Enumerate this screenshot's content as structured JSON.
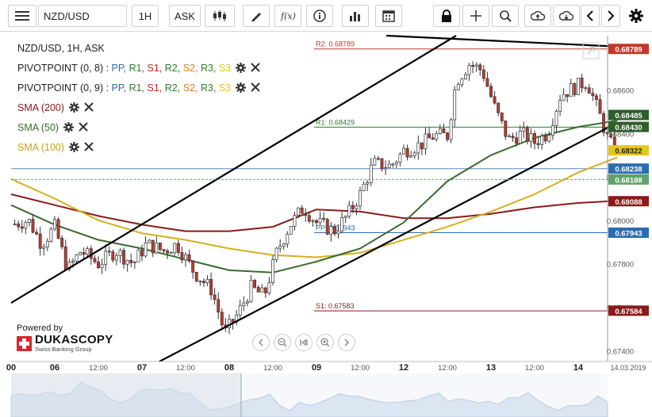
{
  "toolbar": {
    "symbol": "NZD/USD",
    "timeframe": "1H",
    "price_side": "ASK",
    "buttons": [
      "menu-icon",
      "candlestick-icon",
      "pencil-icon",
      "function-icon",
      "info-icon",
      "bar-chart-icon",
      "calendar-icon",
      "lock-icon",
      "crosshair-icon",
      "zoom-icon",
      "upload-icon",
      "download-icon",
      "chevron-left-icon",
      "chevron-right-icon",
      "gear-icon"
    ]
  },
  "legend": {
    "instrument": "NZD/USD, 1H, ASK",
    "pivot1_label": "PIVOTPOINT (0, 8)",
    "pivot2_label": "PIVOTPOINT (0, 9)",
    "pivot_items": [
      {
        "text": "PP",
        "color": "#2b6cb0"
      },
      {
        "text": "R1",
        "color": "#2e7d32"
      },
      {
        "text": "S1",
        "color": "#c62828"
      },
      {
        "text": "R2",
        "color": "#2e7d32"
      },
      {
        "text": "S2",
        "color": "#e67e22"
      },
      {
        "text": "R3",
        "color": "#2e7d32"
      },
      {
        "text": "S3",
        "color": "#e6c619"
      }
    ],
    "sma200": "SMA (200)",
    "sma50": "SMA (50)",
    "sma100": "SMA (100)"
  },
  "branding": {
    "powered_by": "Powered by",
    "company": "DUKASCOPY",
    "tagline": "Swiss Banking Group"
  },
  "colors": {
    "sma200": "#8b1a1a",
    "sma50": "#3a6b2e",
    "sma100": "#d4b020",
    "channel": "#000000",
    "current_price": "#5fa36a",
    "up_candle": "#ffffff",
    "down_candle": "#c0392b"
  },
  "chart_data": {
    "type": "candlestick",
    "symbol": "NZD/USD",
    "timeframe": "1H",
    "ylim": [
      0.6735,
      0.6885
    ],
    "y_ticks": [
      0.674,
      0.676,
      0.678,
      0.68,
      0.682,
      0.684,
      0.686
    ],
    "y_tick_labels": [
      "0.67400",
      "0.67600",
      "0.67800",
      "0.68000",
      "0.68200",
      "0.68400",
      "0.68600"
    ],
    "x_labels": [
      {
        "label": "00",
        "day_index": 0
      },
      {
        "label": "06",
        "day_index": 0.5
      },
      {
        "label": "12:00",
        "day_index": 1
      },
      {
        "label": "07",
        "day_index": 1.5
      },
      {
        "label": "12:00",
        "day_index": 2
      },
      {
        "label": "08",
        "day_index": 2.5
      },
      {
        "label": "12:00",
        "day_index": 3
      },
      {
        "label": "09",
        "day_index": 3.5
      },
      {
        "label": "12:00",
        "day_index": 4
      },
      {
        "label": "12",
        "day_index": 4.5
      },
      {
        "label": "12:00",
        "day_index": 5
      },
      {
        "label": "13",
        "day_index": 5.5
      },
      {
        "label": "12:00",
        "day_index": 6
      },
      {
        "label": "14",
        "day_index": 6.5
      }
    ],
    "date_stamp": "14.03.2019",
    "pivot_levels": [
      {
        "name": "R2",
        "value": 0.68789,
        "label": "R2: 0.68789",
        "color": "#c0392b"
      },
      {
        "name": "R1",
        "value": 0.68429,
        "label": "R1: 0.68429",
        "color": "#2e7d32"
      },
      {
        "name": "PP",
        "value": 0.67943,
        "label": "PP: 0.67943",
        "color": "#2b6cb0"
      },
      {
        "name": "S1",
        "value": 0.67583,
        "label": "S1: 0.67583",
        "color": "#8b1a1a"
      }
    ],
    "price_tags": [
      {
        "label": "0.68789",
        "value": 0.68789,
        "bg": "#c0392b",
        "fg": "#ffffff"
      },
      {
        "label": "0.68485",
        "value": 0.68485,
        "bg": "#2e5e2a",
        "fg": "#ffffff"
      },
      {
        "label": "0.68430",
        "value": 0.6843,
        "bg": "#2e5e2a",
        "fg": "#ffffff"
      },
      {
        "label": "0.68322",
        "value": 0.68322,
        "bg": "#e6c619",
        "fg": "#222222"
      },
      {
        "label": "0.68238",
        "value": 0.68238,
        "bg": "#2b6cb0",
        "fg": "#ffffff"
      },
      {
        "label": "0.68188",
        "value": 0.68188,
        "bg": "#5fa36a",
        "fg": "#ffffff"
      },
      {
        "label": "0.68088",
        "value": 0.68088,
        "bg": "#8b1a1a",
        "fg": "#ffffff"
      },
      {
        "label": "0.67943",
        "value": 0.67943,
        "bg": "#2b6cb0",
        "fg": "#ffffff"
      },
      {
        "label": "0.67584",
        "value": 0.67584,
        "bg": "#8b1a1a",
        "fg": "#ffffff"
      }
    ],
    "current_price": 0.68188,
    "level_lines": [
      0.68238
    ],
    "channel_lines": [
      {
        "from": [
          0.0,
          0.6762
        ],
        "to": [
          5.1,
          0.6885
        ]
      },
      {
        "from": [
          1.7,
          0.6735
        ],
        "to": [
          6.95,
          0.6845
        ]
      },
      {
        "from": [
          4.3,
          0.6885
        ],
        "to": [
          6.95,
          0.688
        ]
      }
    ],
    "sma200": [
      [
        0.0,
        0.6812
      ],
      [
        0.5,
        0.6807
      ],
      [
        1.0,
        0.6802
      ],
      [
        1.5,
        0.6798
      ],
      [
        2.0,
        0.6795
      ],
      [
        2.5,
        0.6795
      ],
      [
        3.0,
        0.6797
      ],
      [
        3.5,
        0.6805
      ],
      [
        4.0,
        0.6804
      ],
      [
        4.5,
        0.6801
      ],
      [
        5.0,
        0.6801
      ],
      [
        5.5,
        0.6803
      ],
      [
        6.0,
        0.6806
      ],
      [
        6.5,
        0.6808
      ],
      [
        6.95,
        0.6809
      ]
    ],
    "sma50": [
      [
        0.0,
        0.6807
      ],
      [
        0.5,
        0.6798
      ],
      [
        1.0,
        0.6791
      ],
      [
        1.5,
        0.6787
      ],
      [
        2.0,
        0.6782
      ],
      [
        2.5,
        0.6777
      ],
      [
        3.0,
        0.6776
      ],
      [
        3.5,
        0.6781
      ],
      [
        4.0,
        0.6787
      ],
      [
        4.5,
        0.6799
      ],
      [
        5.0,
        0.6818
      ],
      [
        5.5,
        0.683
      ],
      [
        6.0,
        0.6838
      ],
      [
        6.5,
        0.6843
      ],
      [
        6.95,
        0.6846
      ]
    ],
    "sma100": [
      [
        0.0,
        0.6819
      ],
      [
        0.5,
        0.681
      ],
      [
        1.0,
        0.68
      ],
      [
        1.5,
        0.6794
      ],
      [
        2.0,
        0.6791
      ],
      [
        2.5,
        0.6787
      ],
      [
        3.0,
        0.6784
      ],
      [
        3.5,
        0.6783
      ],
      [
        4.0,
        0.6785
      ],
      [
        4.5,
        0.6791
      ],
      [
        5.0,
        0.6797
      ],
      [
        5.5,
        0.6804
      ],
      [
        6.0,
        0.6812
      ],
      [
        6.5,
        0.6822
      ],
      [
        6.95,
        0.6829
      ]
    ],
    "close_path": [
      [
        0.0,
        0.6798
      ],
      [
        0.2,
        0.68
      ],
      [
        0.35,
        0.6789
      ],
      [
        0.5,
        0.6797
      ],
      [
        0.65,
        0.6777
      ],
      [
        0.8,
        0.6786
      ],
      [
        1.0,
        0.678
      ],
      [
        1.2,
        0.6786
      ],
      [
        1.4,
        0.678
      ],
      [
        1.55,
        0.6789
      ],
      [
        1.75,
        0.6786
      ],
      [
        1.9,
        0.6789
      ],
      [
        2.1,
        0.6776
      ],
      [
        2.3,
        0.6768
      ],
      [
        2.45,
        0.6748
      ],
      [
        2.6,
        0.6757
      ],
      [
        2.75,
        0.6769
      ],
      [
        2.9,
        0.6765
      ],
      [
        3.05,
        0.6786
      ],
      [
        3.2,
        0.6798
      ],
      [
        3.35,
        0.6806
      ],
      [
        3.5,
        0.6799
      ],
      [
        3.7,
        0.6795
      ],
      [
        3.85,
        0.6802
      ],
      [
        4.0,
        0.6812
      ],
      [
        4.15,
        0.6826
      ],
      [
        4.35,
        0.6825
      ],
      [
        4.5,
        0.6832
      ],
      [
        4.7,
        0.6835
      ],
      [
        4.85,
        0.6839
      ],
      [
        5.0,
        0.6839
      ],
      [
        5.1,
        0.6864
      ],
      [
        5.25,
        0.6872
      ],
      [
        5.4,
        0.6869
      ],
      [
        5.55,
        0.6851
      ],
      [
        5.7,
        0.6837
      ],
      [
        5.85,
        0.684
      ],
      [
        6.0,
        0.6836
      ],
      [
        6.15,
        0.684
      ],
      [
        6.3,
        0.6858
      ],
      [
        6.45,
        0.6861
      ],
      [
        6.6,
        0.6864
      ],
      [
        6.75,
        0.6848
      ],
      [
        6.85,
        0.6836
      ],
      [
        6.95,
        0.6832
      ]
    ]
  }
}
